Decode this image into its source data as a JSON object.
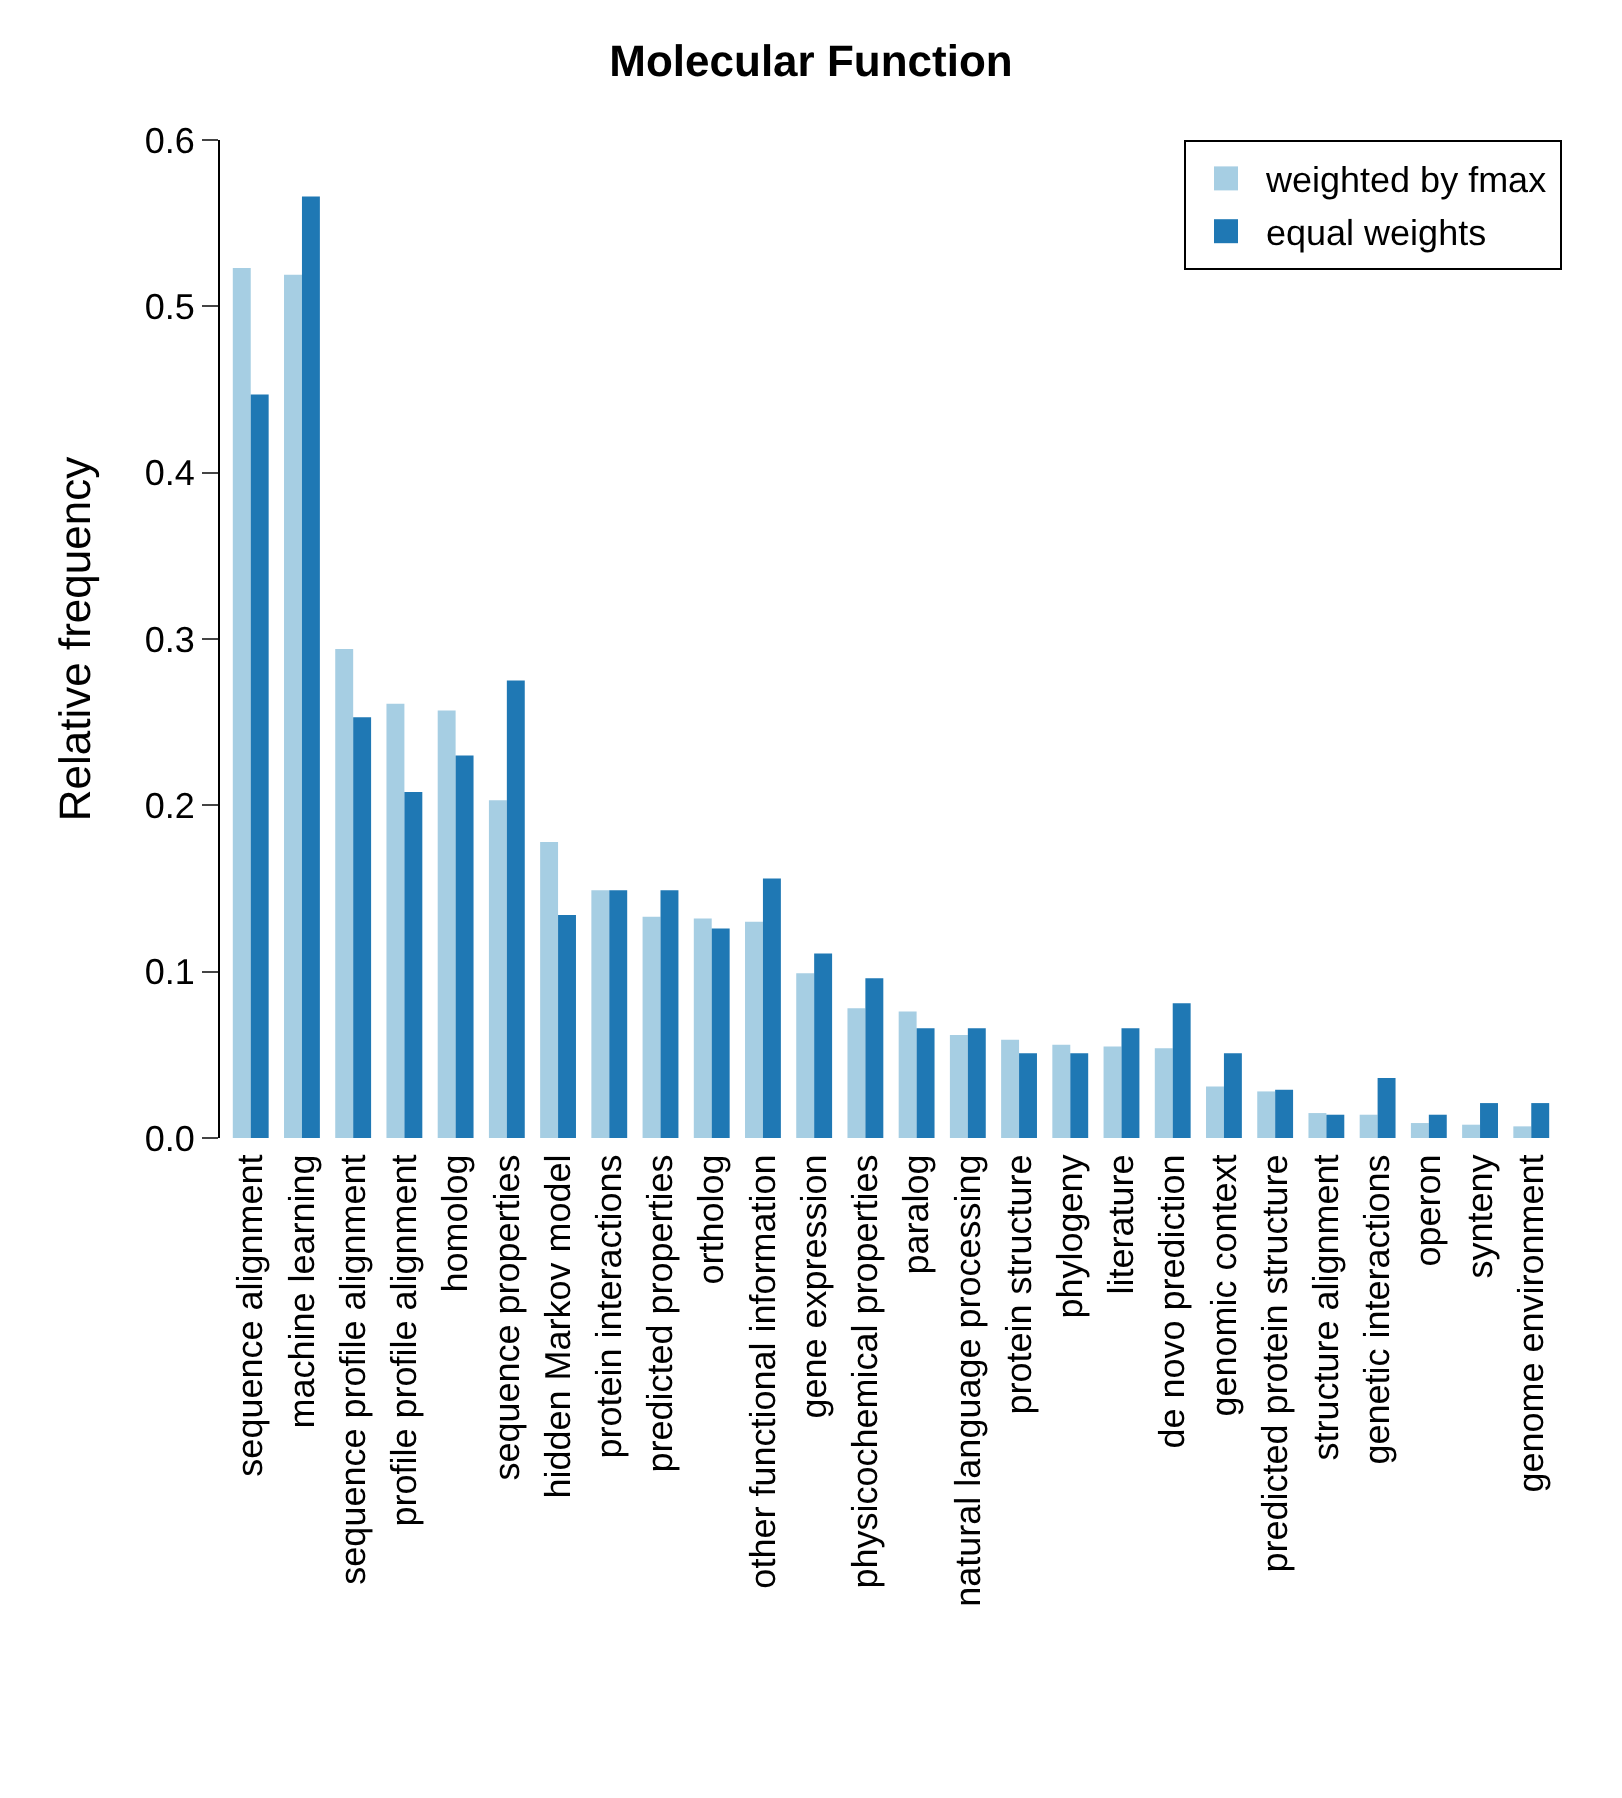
{
  "chart_data": {
    "type": "bar",
    "title": "Molecular Function",
    "ylabel": "Relative frequency",
    "categories": [
      "sequence alignment",
      "machine learning",
      "sequence profile alignment",
      "profile profile alignment",
      "homolog",
      "sequence properties",
      "hidden Markov model",
      "protein interactions",
      "predicted properties",
      "ortholog",
      "other functional information",
      "gene expression",
      "physicochemical properties",
      "paralog",
      "natural language processing",
      "protein structure",
      "phylogeny",
      "literature",
      "de novo prediction",
      "genomic context",
      "predicted protein structure",
      "structure alignment",
      "genetic interactions",
      "operon",
      "synteny",
      "genome environment"
    ],
    "series": [
      {
        "name": "weighted by fmax",
        "color": "#a6cee3",
        "values": [
          0.523,
          0.519,
          0.294,
          0.261,
          0.257,
          0.203,
          0.178,
          0.149,
          0.133,
          0.132,
          0.13,
          0.099,
          0.078,
          0.076,
          0.062,
          0.059,
          0.056,
          0.055,
          0.054,
          0.031,
          0.028,
          0.015,
          0.014,
          0.009,
          0.008,
          0.007
        ]
      },
      {
        "name": "equal weights",
        "color": "#1f78b4",
        "values": [
          0.447,
          0.566,
          0.253,
          0.208,
          0.23,
          0.275,
          0.134,
          0.149,
          0.149,
          0.126,
          0.156,
          0.111,
          0.096,
          0.066,
          0.066,
          0.051,
          0.051,
          0.066,
          0.081,
          0.051,
          0.029,
          0.014,
          0.036,
          0.014,
          0.021,
          0.021
        ]
      }
    ],
    "ylim": [
      0,
      0.6
    ],
    "yticks": [
      {
        "value": 0,
        "label": "0.0"
      },
      {
        "value": 0.1,
        "label": "0.1"
      },
      {
        "value": 0.2,
        "label": "0.2"
      },
      {
        "value": 0.3,
        "label": "0.3"
      },
      {
        "value": 0.4,
        "label": "0.4"
      },
      {
        "value": 0.5,
        "label": "0.5"
      },
      {
        "value": 0.6,
        "label": "0.6"
      }
    ],
    "legend": "top right"
  }
}
